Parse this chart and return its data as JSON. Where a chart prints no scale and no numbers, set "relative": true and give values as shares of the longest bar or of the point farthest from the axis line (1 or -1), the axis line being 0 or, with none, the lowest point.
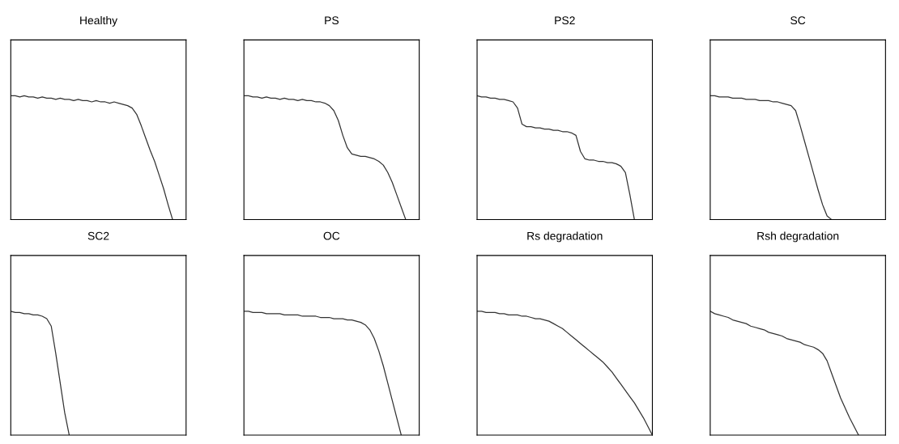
{
  "chart_data": [
    {
      "type": "line",
      "title": "Healthy",
      "relative": true,
      "categories": [
        null,
        null,
        null,
        null,
        null,
        null,
        null,
        null,
        null,
        null,
        null,
        null,
        null,
        null,
        null,
        null,
        null,
        null,
        null,
        null,
        null,
        null,
        null,
        null,
        null,
        null,
        null,
        null,
        null,
        null,
        null,
        null,
        null,
        null,
        null,
        null,
        null,
        null,
        null,
        null
      ],
      "series": [
        {
          "color": "#333333",
          "values": [
            1.0,
            1.0,
            0.99,
            1.0,
            0.99,
            0.99,
            0.98,
            0.99,
            0.98,
            0.98,
            0.97,
            0.98,
            0.97,
            0.97,
            0.96,
            0.97,
            0.96,
            0.96,
            0.95,
            0.96,
            0.95,
            0.95,
            0.94,
            0.95,
            0.94,
            0.93,
            0.92,
            0.9,
            0.85,
            0.76,
            0.66,
            0.56,
            0.47,
            0.36,
            0.25,
            0.12,
            0.0,
            null,
            null,
            null
          ]
        }
      ]
    },
    {
      "type": "line",
      "title": "PS",
      "relative": true,
      "categories": [
        null,
        null,
        null,
        null,
        null,
        null,
        null,
        null,
        null,
        null,
        null,
        null,
        null,
        null,
        null,
        null,
        null,
        null,
        null,
        null,
        null,
        null,
        null,
        null,
        null,
        null,
        null,
        null,
        null,
        null,
        null,
        null,
        null,
        null,
        null,
        null,
        null,
        null,
        null,
        null
      ],
      "series": [
        {
          "color": "#333333",
          "values": [
            1.0,
            1.0,
            0.99,
            0.99,
            0.98,
            0.99,
            0.98,
            0.98,
            0.97,
            0.98,
            0.97,
            0.97,
            0.96,
            0.97,
            0.96,
            0.96,
            0.95,
            0.95,
            0.94,
            0.92,
            0.88,
            0.8,
            0.68,
            0.58,
            0.53,
            0.52,
            0.51,
            0.51,
            0.5,
            0.49,
            0.47,
            0.44,
            0.38,
            0.3,
            0.2,
            0.1,
            0.0,
            null,
            null,
            null
          ]
        }
      ]
    },
    {
      "type": "line",
      "title": "PS2",
      "relative": true,
      "categories": [
        null,
        null,
        null,
        null,
        null,
        null,
        null,
        null,
        null,
        null,
        null,
        null,
        null,
        null,
        null,
        null,
        null,
        null,
        null,
        null,
        null,
        null,
        null,
        null,
        null,
        null,
        null,
        null,
        null,
        null,
        null,
        null,
        null,
        null,
        null,
        null,
        null,
        null,
        null,
        null
      ],
      "series": [
        {
          "color": "#333333",
          "values": [
            1.0,
            0.99,
            0.99,
            0.98,
            0.98,
            0.97,
            0.97,
            0.96,
            0.95,
            0.9,
            0.77,
            0.75,
            0.75,
            0.74,
            0.74,
            0.73,
            0.73,
            0.72,
            0.72,
            0.71,
            0.71,
            0.7,
            0.68,
            0.55,
            0.49,
            0.48,
            0.48,
            0.47,
            0.47,
            0.46,
            0.46,
            0.45,
            0.43,
            0.38,
            0.2,
            0.0,
            null,
            null,
            null,
            null
          ]
        }
      ]
    },
    {
      "type": "line",
      "title": "SC",
      "relative": true,
      "categories": [
        null,
        null,
        null,
        null,
        null,
        null,
        null,
        null,
        null,
        null,
        null,
        null,
        null,
        null,
        null,
        null,
        null,
        null,
        null,
        null,
        null,
        null,
        null,
        null,
        null,
        null,
        null,
        null,
        null,
        null,
        null,
        null,
        null,
        null,
        null,
        null,
        null,
        null,
        null,
        null
      ],
      "series": [
        {
          "color": "#333333",
          "values": [
            1.0,
            1.0,
            0.99,
            0.99,
            0.99,
            0.98,
            0.98,
            0.98,
            0.97,
            0.97,
            0.97,
            0.96,
            0.96,
            0.96,
            0.95,
            0.95,
            0.94,
            0.93,
            0.92,
            0.88,
            0.76,
            0.63,
            0.5,
            0.37,
            0.24,
            0.12,
            0.03,
            0.0,
            null,
            null,
            null,
            null,
            null,
            null,
            null,
            null,
            null,
            null,
            null,
            null
          ]
        }
      ]
    },
    {
      "type": "line",
      "title": "SC2",
      "relative": true,
      "categories": [
        null,
        null,
        null,
        null,
        null,
        null,
        null,
        null,
        null,
        null,
        null,
        null,
        null,
        null,
        null,
        null,
        null,
        null,
        null,
        null,
        null,
        null,
        null,
        null,
        null,
        null,
        null,
        null,
        null,
        null,
        null,
        null,
        null,
        null,
        null,
        null,
        null,
        null,
        null,
        null
      ],
      "series": [
        {
          "color": "#333333",
          "values": [
            1.0,
            0.99,
            0.99,
            0.98,
            0.98,
            0.97,
            0.97,
            0.96,
            0.94,
            0.88,
            0.66,
            0.42,
            0.18,
            0.0,
            null,
            null,
            null,
            null,
            null,
            null,
            null,
            null,
            null,
            null,
            null,
            null,
            null,
            null,
            null,
            null,
            null,
            null,
            null,
            null,
            null,
            null,
            null,
            null,
            null,
            null
          ]
        }
      ]
    },
    {
      "type": "line",
      "title": "OC",
      "relative": true,
      "categories": [
        null,
        null,
        null,
        null,
        null,
        null,
        null,
        null,
        null,
        null,
        null,
        null,
        null,
        null,
        null,
        null,
        null,
        null,
        null,
        null,
        null,
        null,
        null,
        null,
        null,
        null,
        null,
        null,
        null,
        null,
        null,
        null,
        null,
        null,
        null,
        null,
        null,
        null,
        null,
        null
      ],
      "series": [
        {
          "color": "#333333",
          "values": [
            1.0,
            1.0,
            0.99,
            0.99,
            0.99,
            0.98,
            0.98,
            0.98,
            0.98,
            0.97,
            0.97,
            0.97,
            0.97,
            0.96,
            0.96,
            0.96,
            0.96,
            0.95,
            0.95,
            0.95,
            0.94,
            0.94,
            0.94,
            0.93,
            0.93,
            0.92,
            0.91,
            0.89,
            0.85,
            0.78,
            0.68,
            0.56,
            0.42,
            0.28,
            0.14,
            0.0,
            null,
            null,
            null,
            null
          ]
        }
      ]
    },
    {
      "type": "line",
      "title": "Rs degradation",
      "relative": true,
      "categories": [
        null,
        null,
        null,
        null,
        null,
        null,
        null,
        null,
        null,
        null,
        null,
        null,
        null,
        null,
        null,
        null,
        null,
        null,
        null,
        null,
        null,
        null,
        null,
        null,
        null,
        null,
        null,
        null,
        null,
        null,
        null,
        null,
        null,
        null,
        null,
        null,
        null,
        null,
        null,
        null
      ],
      "series": [
        {
          "color": "#333333",
          "values": [
            1.0,
            1.0,
            0.99,
            0.99,
            0.99,
            0.98,
            0.98,
            0.97,
            0.97,
            0.97,
            0.96,
            0.96,
            0.95,
            0.94,
            0.94,
            0.93,
            0.92,
            0.9,
            0.88,
            0.86,
            0.83,
            0.8,
            0.77,
            0.74,
            0.71,
            0.68,
            0.65,
            0.62,
            0.59,
            0.55,
            0.51,
            0.46,
            0.41,
            0.36,
            0.31,
            0.26,
            0.2,
            0.14,
            0.07,
            0.0
          ]
        }
      ]
    },
    {
      "type": "line",
      "title": "Rsh degradation",
      "relative": true,
      "categories": [
        null,
        null,
        null,
        null,
        null,
        null,
        null,
        null,
        null,
        null,
        null,
        null,
        null,
        null,
        null,
        null,
        null,
        null,
        null,
        null,
        null,
        null,
        null,
        null,
        null,
        null,
        null,
        null,
        null,
        null,
        null,
        null,
        null,
        null,
        null,
        null,
        null,
        null,
        null,
        null
      ],
      "series": [
        {
          "color": "#333333",
          "values": [
            1.0,
            0.98,
            0.97,
            0.96,
            0.95,
            0.93,
            0.92,
            0.91,
            0.9,
            0.88,
            0.87,
            0.86,
            0.85,
            0.83,
            0.82,
            0.81,
            0.8,
            0.78,
            0.77,
            0.76,
            0.75,
            0.73,
            0.72,
            0.71,
            0.69,
            0.66,
            0.6,
            0.5,
            0.4,
            0.3,
            0.22,
            0.14,
            0.07,
            0.0,
            null,
            null,
            null,
            null,
            null,
            null
          ]
        }
      ]
    }
  ]
}
